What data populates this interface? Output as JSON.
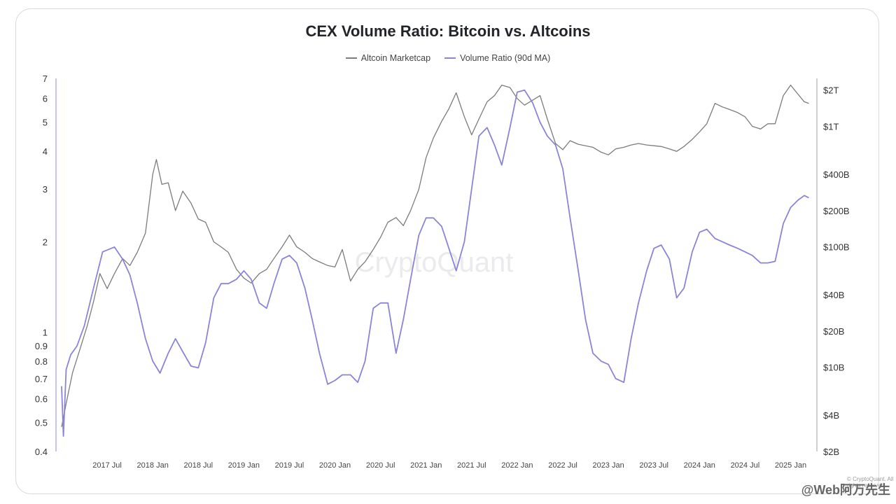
{
  "chart_data": {
    "type": "line",
    "title": "CEX Volume Ratio: Bitcoin vs. Altcoins",
    "watermark": "CryptoQuant",
    "copyright": "© CryptoQuant. All rights reserved",
    "corner_mark": "@Web阿万先生",
    "x_ticks": [
      "2017 Jul",
      "2018 Jan",
      "2018 Jul",
      "2019 Jan",
      "2019 Jul",
      "2020 Jan",
      "2020 Jul",
      "2021 Jan",
      "2021 Jul",
      "2022 Jan",
      "2022 Jul",
      "2023 Jan",
      "2023 Jul",
      "2024 Jan",
      "2024 Jul",
      "2025 Jan"
    ],
    "x_range": [
      2017.0,
      2025.25
    ],
    "y_left": {
      "scale": "log",
      "range": [
        0.4,
        7
      ],
      "ticks": [
        {
          "v": 0.4,
          "label": "0.4"
        },
        {
          "v": 0.5,
          "label": "0.5"
        },
        {
          "v": 0.6,
          "label": "0.6"
        },
        {
          "v": 0.7,
          "label": "0.7"
        },
        {
          "v": 0.8,
          "label": "0.8"
        },
        {
          "v": 0.9,
          "label": "0.9"
        },
        {
          "v": 1,
          "label": "1"
        },
        {
          "v": 2,
          "label": "2"
        },
        {
          "v": 3,
          "label": "3"
        },
        {
          "v": 4,
          "label": "4"
        },
        {
          "v": 5,
          "label": "5"
        },
        {
          "v": 6,
          "label": "6"
        },
        {
          "v": 7,
          "label": "7"
        }
      ]
    },
    "y_right": {
      "scale": "log",
      "range": [
        2,
        2500
      ],
      "ticks": [
        {
          "v": 2,
          "label": "$2B"
        },
        {
          "v": 4,
          "label": "$4B"
        },
        {
          "v": 10,
          "label": "$10B"
        },
        {
          "v": 20,
          "label": "$20B"
        },
        {
          "v": 40,
          "label": "$40B"
        },
        {
          "v": 100,
          "label": "$100B"
        },
        {
          "v": 200,
          "label": "$200B"
        },
        {
          "v": 400,
          "label": "$400B"
        },
        {
          "v": 1000,
          "label": "$1T"
        },
        {
          "v": 2000,
          "label": "$2T"
        }
      ]
    },
    "series": [
      {
        "name": "Altcoin Marketcap",
        "axis": "right",
        "color": "#7c7c7c",
        "points": [
          [
            2017.0,
            3.2
          ],
          [
            2017.05,
            5
          ],
          [
            2017.12,
            9
          ],
          [
            2017.2,
            14
          ],
          [
            2017.28,
            22
          ],
          [
            2017.35,
            35
          ],
          [
            2017.42,
            60
          ],
          [
            2017.5,
            45
          ],
          [
            2017.58,
            60
          ],
          [
            2017.67,
            80
          ],
          [
            2017.75,
            70
          ],
          [
            2017.83,
            90
          ],
          [
            2017.92,
            130
          ],
          [
            2018.0,
            400
          ],
          [
            2018.04,
            530
          ],
          [
            2018.1,
            330
          ],
          [
            2018.17,
            340
          ],
          [
            2018.25,
            200
          ],
          [
            2018.33,
            290
          ],
          [
            2018.42,
            230
          ],
          [
            2018.5,
            170
          ],
          [
            2018.58,
            160
          ],
          [
            2018.67,
            110
          ],
          [
            2018.75,
            100
          ],
          [
            2018.83,
            90
          ],
          [
            2018.92,
            65
          ],
          [
            2019.0,
            55
          ],
          [
            2019.08,
            50
          ],
          [
            2019.17,
            60
          ],
          [
            2019.25,
            65
          ],
          [
            2019.33,
            80
          ],
          [
            2019.42,
            100
          ],
          [
            2019.5,
            125
          ],
          [
            2019.58,
            100
          ],
          [
            2019.67,
            90
          ],
          [
            2019.75,
            80
          ],
          [
            2019.83,
            75
          ],
          [
            2019.92,
            70
          ],
          [
            2020.0,
            68
          ],
          [
            2020.08,
            95
          ],
          [
            2020.17,
            52
          ],
          [
            2020.25,
            65
          ],
          [
            2020.33,
            75
          ],
          [
            2020.42,
            95
          ],
          [
            2020.5,
            120
          ],
          [
            2020.58,
            160
          ],
          [
            2020.67,
            175
          ],
          [
            2020.75,
            150
          ],
          [
            2020.83,
            200
          ],
          [
            2020.92,
            300
          ],
          [
            2021.0,
            550
          ],
          [
            2021.08,
            800
          ],
          [
            2021.17,
            1100
          ],
          [
            2021.25,
            1400
          ],
          [
            2021.33,
            1900
          ],
          [
            2021.42,
            1200
          ],
          [
            2021.5,
            850
          ],
          [
            2021.58,
            1150
          ],
          [
            2021.67,
            1600
          ],
          [
            2021.75,
            1800
          ],
          [
            2021.83,
            2200
          ],
          [
            2021.92,
            2100
          ],
          [
            2022.0,
            1700
          ],
          [
            2022.08,
            1500
          ],
          [
            2022.17,
            1650
          ],
          [
            2022.25,
            1800
          ],
          [
            2022.33,
            1150
          ],
          [
            2022.42,
            720
          ],
          [
            2022.5,
            640
          ],
          [
            2022.58,
            760
          ],
          [
            2022.67,
            710
          ],
          [
            2022.75,
            690
          ],
          [
            2022.83,
            670
          ],
          [
            2022.92,
            610
          ],
          [
            2023.0,
            580
          ],
          [
            2023.08,
            650
          ],
          [
            2023.17,
            670
          ],
          [
            2023.25,
            700
          ],
          [
            2023.33,
            720
          ],
          [
            2023.42,
            700
          ],
          [
            2023.5,
            690
          ],
          [
            2023.58,
            680
          ],
          [
            2023.67,
            650
          ],
          [
            2023.75,
            620
          ],
          [
            2023.83,
            680
          ],
          [
            2023.92,
            780
          ],
          [
            2024.0,
            900
          ],
          [
            2024.08,
            1050
          ],
          [
            2024.17,
            1550
          ],
          [
            2024.25,
            1450
          ],
          [
            2024.33,
            1380
          ],
          [
            2024.42,
            1300
          ],
          [
            2024.5,
            1200
          ],
          [
            2024.58,
            1000
          ],
          [
            2024.67,
            950
          ],
          [
            2024.75,
            1050
          ],
          [
            2024.83,
            1050
          ],
          [
            2024.92,
            1800
          ],
          [
            2025.0,
            2200
          ],
          [
            2025.08,
            1850
          ],
          [
            2025.15,
            1600
          ],
          [
            2025.2,
            1550
          ]
        ]
      },
      {
        "name": "Volume Ratio (90d MA)",
        "axis": "left",
        "color": "#8b84d7",
        "points": [
          [
            2017.0,
            0.66
          ],
          [
            2017.02,
            0.45
          ],
          [
            2017.05,
            0.75
          ],
          [
            2017.1,
            0.84
          ],
          [
            2017.17,
            0.9
          ],
          [
            2017.25,
            1.05
          ],
          [
            2017.35,
            1.4
          ],
          [
            2017.45,
            1.85
          ],
          [
            2017.58,
            1.92
          ],
          [
            2017.67,
            1.75
          ],
          [
            2017.75,
            1.55
          ],
          [
            2017.83,
            1.25
          ],
          [
            2017.92,
            0.95
          ],
          [
            2018.0,
            0.8
          ],
          [
            2018.08,
            0.73
          ],
          [
            2018.17,
            0.85
          ],
          [
            2018.25,
            0.95
          ],
          [
            2018.33,
            0.86
          ],
          [
            2018.42,
            0.77
          ],
          [
            2018.5,
            0.76
          ],
          [
            2018.58,
            0.92
          ],
          [
            2018.67,
            1.3
          ],
          [
            2018.75,
            1.45
          ],
          [
            2018.83,
            1.45
          ],
          [
            2018.92,
            1.5
          ],
          [
            2019.0,
            1.6
          ],
          [
            2019.08,
            1.5
          ],
          [
            2019.17,
            1.25
          ],
          [
            2019.25,
            1.2
          ],
          [
            2019.33,
            1.45
          ],
          [
            2019.42,
            1.75
          ],
          [
            2019.5,
            1.8
          ],
          [
            2019.58,
            1.7
          ],
          [
            2019.67,
            1.4
          ],
          [
            2019.75,
            1.1
          ],
          [
            2019.83,
            0.85
          ],
          [
            2019.92,
            0.67
          ],
          [
            2020.0,
            0.69
          ],
          [
            2020.08,
            0.72
          ],
          [
            2020.17,
            0.72
          ],
          [
            2020.25,
            0.68
          ],
          [
            2020.33,
            0.8
          ],
          [
            2020.42,
            1.2
          ],
          [
            2020.5,
            1.25
          ],
          [
            2020.58,
            1.25
          ],
          [
            2020.67,
            0.85
          ],
          [
            2020.75,
            1.1
          ],
          [
            2020.83,
            1.5
          ],
          [
            2020.92,
            2.1
          ],
          [
            2021.0,
            2.4
          ],
          [
            2021.08,
            2.4
          ],
          [
            2021.17,
            2.25
          ],
          [
            2021.25,
            1.9
          ],
          [
            2021.33,
            1.6
          ],
          [
            2021.42,
            2.0
          ],
          [
            2021.5,
            3.0
          ],
          [
            2021.58,
            4.5
          ],
          [
            2021.67,
            4.8
          ],
          [
            2021.75,
            4.2
          ],
          [
            2021.83,
            3.6
          ],
          [
            2021.92,
            4.8
          ],
          [
            2022.0,
            6.3
          ],
          [
            2022.08,
            6.4
          ],
          [
            2022.17,
            5.8
          ],
          [
            2022.25,
            5.0
          ],
          [
            2022.33,
            4.5
          ],
          [
            2022.42,
            4.2
          ],
          [
            2022.5,
            3.5
          ],
          [
            2022.58,
            2.4
          ],
          [
            2022.67,
            1.6
          ],
          [
            2022.75,
            1.1
          ],
          [
            2022.83,
            0.85
          ],
          [
            2022.92,
            0.8
          ],
          [
            2023.0,
            0.78
          ],
          [
            2023.08,
            0.7
          ],
          [
            2023.17,
            0.68
          ],
          [
            2023.25,
            0.95
          ],
          [
            2023.33,
            1.25
          ],
          [
            2023.42,
            1.6
          ],
          [
            2023.5,
            1.9
          ],
          [
            2023.58,
            1.95
          ],
          [
            2023.67,
            1.75
          ],
          [
            2023.75,
            1.3
          ],
          [
            2023.83,
            1.4
          ],
          [
            2023.92,
            1.85
          ],
          [
            2024.0,
            2.15
          ],
          [
            2024.08,
            2.2
          ],
          [
            2024.17,
            2.05
          ],
          [
            2024.25,
            2.0
          ],
          [
            2024.33,
            1.95
          ],
          [
            2024.42,
            1.9
          ],
          [
            2024.5,
            1.85
          ],
          [
            2024.58,
            1.8
          ],
          [
            2024.67,
            1.7
          ],
          [
            2024.75,
            1.7
          ],
          [
            2024.83,
            1.72
          ],
          [
            2024.92,
            2.3
          ],
          [
            2025.0,
            2.6
          ],
          [
            2025.08,
            2.75
          ],
          [
            2025.15,
            2.85
          ],
          [
            2025.2,
            2.8
          ]
        ]
      }
    ]
  }
}
